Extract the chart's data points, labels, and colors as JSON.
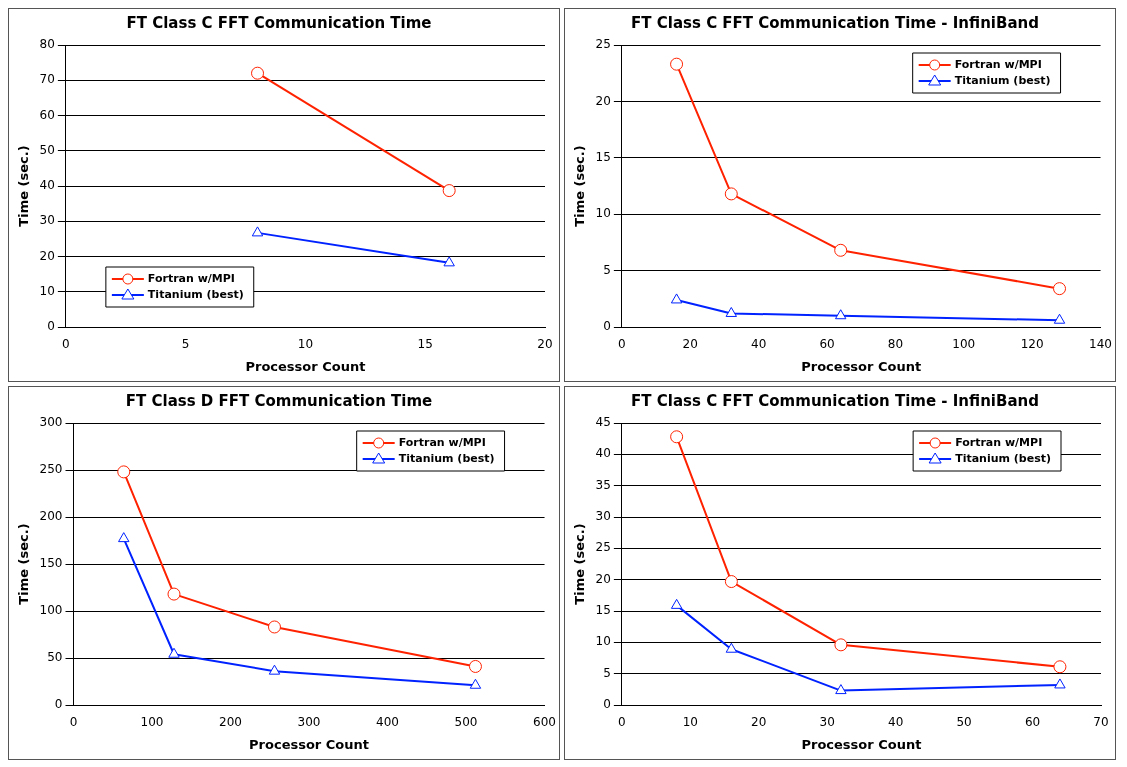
{
  "chart_data": [
    {
      "type": "line",
      "title": "FT Class C FFT Communication Time",
      "xlabel": "Processor Count",
      "ylabel": "Time (sec.)",
      "xlim": [
        0,
        20
      ],
      "xticks": [
        0,
        5,
        10,
        15,
        20
      ],
      "ylim": [
        0,
        80
      ],
      "yticks": [
        0,
        10,
        20,
        30,
        40,
        50,
        60,
        70,
        80
      ],
      "grid": "y",
      "legend": "bottom left",
      "series": [
        {
          "name": "Fortran w/MPI",
          "color": "#ff2200",
          "marker": "circle",
          "x": [
            8,
            16
          ],
          "values": [
            72,
            38.7
          ]
        },
        {
          "name": "Titanium (best)",
          "color": "#0022ff",
          "marker": "triangle",
          "x": [
            8,
            16
          ],
          "values": [
            26.7,
            18.2
          ]
        }
      ]
    },
    {
      "type": "line",
      "title": "FT Class C FFT Communication Time - InfiniBand",
      "xlabel": "Processor Count",
      "ylabel": "Time (sec.)",
      "xlim": [
        0,
        140
      ],
      "xticks": [
        0,
        20,
        40,
        60,
        80,
        100,
        120,
        140
      ],
      "ylim": [
        0,
        25
      ],
      "yticks": [
        0,
        5,
        10,
        15,
        20,
        25
      ],
      "grid": "y",
      "legend": "top right",
      "series": [
        {
          "name": "Fortran w/MPI",
          "color": "#ff2200",
          "marker": "circle",
          "x": [
            16,
            32,
            64,
            128
          ],
          "values": [
            23.3,
            11.8,
            6.8,
            3.4
          ]
        },
        {
          "name": "Titanium (best)",
          "color": "#0022ff",
          "marker": "triangle",
          "x": [
            16,
            32,
            64,
            128
          ],
          "values": [
            2.4,
            1.2,
            1.0,
            0.6
          ]
        }
      ]
    },
    {
      "type": "line",
      "title": "FT Class D FFT Communication Time",
      "xlabel": "Processor Count",
      "ylabel": "Time (sec.)",
      "xlim": [
        0,
        600
      ],
      "xticks": [
        0,
        100,
        200,
        300,
        400,
        500,
        600
      ],
      "ylim": [
        0,
        300
      ],
      "yticks": [
        0,
        50,
        100,
        150,
        200,
        250,
        300
      ],
      "grid": "y",
      "legend": "top right",
      "series": [
        {
          "name": "Fortran w/MPI",
          "color": "#ff2200",
          "marker": "circle",
          "x": [
            64,
            128,
            256,
            512
          ],
          "values": [
            248,
            118,
            83,
            41
          ]
        },
        {
          "name": "Titanium (best)",
          "color": "#0022ff",
          "marker": "triangle",
          "x": [
            64,
            128,
            256,
            512
          ],
          "values": [
            177,
            54,
            36,
            21
          ]
        }
      ]
    },
    {
      "type": "line",
      "title": "FT Class C FFT Communication Time - InfiniBand",
      "xlabel": "Processor Count",
      "ylabel": "Time (sec.)",
      "xlim": [
        0,
        70
      ],
      "xticks": [
        0,
        10,
        20,
        30,
        40,
        50,
        60,
        70
      ],
      "ylim": [
        0,
        45
      ],
      "yticks": [
        0,
        5,
        10,
        15,
        20,
        25,
        30,
        35,
        40,
        45
      ],
      "grid": "y",
      "legend": "top right",
      "series": [
        {
          "name": "Fortran w/MPI",
          "color": "#ff2200",
          "marker": "circle",
          "x": [
            8,
            16,
            32,
            64
          ],
          "values": [
            42.8,
            19.7,
            9.6,
            6.1
          ]
        },
        {
          "name": "Titanium (best)",
          "color": "#0022ff",
          "marker": "triangle",
          "x": [
            8,
            16,
            32,
            64
          ],
          "values": [
            15.9,
            8.9,
            2.3,
            3.2
          ]
        }
      ]
    }
  ]
}
